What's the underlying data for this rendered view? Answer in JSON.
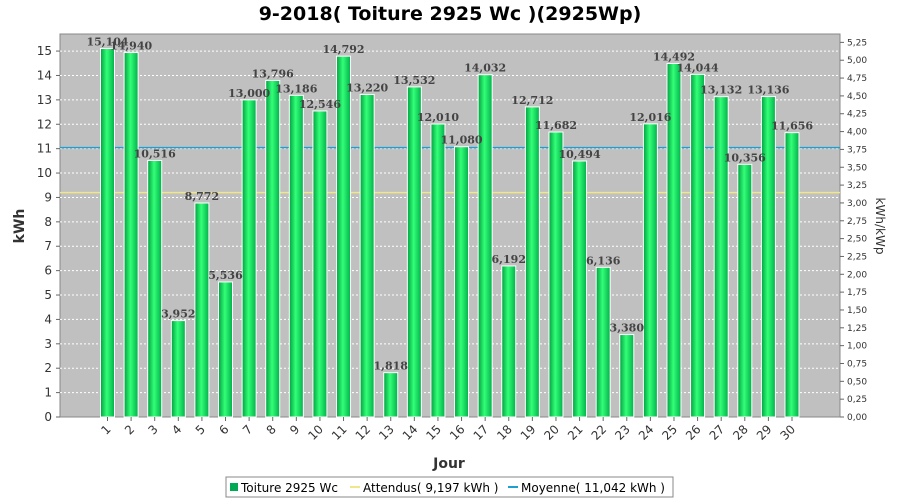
{
  "chart_data": {
    "type": "bar",
    "title": "9-2018( Toiture 2925 Wc )(2925Wp)",
    "xlabel": "Jour",
    "ylabel": "kWh",
    "y2label": "kWh/kWp",
    "ylim": [
      0,
      15.7
    ],
    "y2lim": [
      0,
      5.3675
    ],
    "categories": [
      "1",
      "2",
      "3",
      "4",
      "5",
      "6",
      "7",
      "8",
      "9",
      "10",
      "11",
      "12",
      "13",
      "14",
      "15",
      "16",
      "17",
      "18",
      "19",
      "20",
      "21",
      "22",
      "23",
      "24",
      "25",
      "26",
      "27",
      "28",
      "29",
      "30"
    ],
    "series": [
      {
        "name": "Toiture 2925 Wc",
        "color": "#00dd55",
        "values": [
          15.104,
          14.94,
          10.516,
          3.952,
          8.772,
          5.536,
          13.0,
          13.796,
          13.186,
          12.546,
          14.792,
          13.22,
          1.818,
          13.532,
          12.01,
          11.08,
          14.032,
          6.192,
          12.712,
          11.682,
          10.494,
          6.136,
          3.38,
          12.016,
          14.492,
          14.044,
          13.132,
          10.356,
          13.136,
          11.656
        ]
      }
    ],
    "data_labels": [
      "15,104",
      "14,940",
      "10,516",
      "3,952",
      "8,772",
      "5,536",
      "13,000",
      "13,796",
      "13,186",
      "12,546",
      "14,792",
      "13,220",
      "1,818",
      "13,532",
      "12,010",
      "11,080",
      "14,032",
      "6,192",
      "12,712",
      "11,682",
      "10,494",
      "6,136",
      "3,380",
      "12,016",
      "14,492",
      "14,044",
      "13,132",
      "10,356",
      "13,136",
      "11,656"
    ],
    "reference_lines": [
      {
        "name": "Attendus( 9,197 kWh )",
        "value": 9.197,
        "color": "#f0e68c"
      },
      {
        "name": "Moyenne( 11,042 kWh )",
        "value": 11.042,
        "color": "#1e9fd0"
      }
    ],
    "y_ticks": [
      "0",
      "1",
      "2",
      "3",
      "4",
      "5",
      "6",
      "7",
      "8",
      "9",
      "10",
      "11",
      "12",
      "13",
      "14",
      "15"
    ],
    "y2_ticks": [
      "0,00",
      "0,25",
      "0,50",
      "0,75",
      "1,00",
      "1,25",
      "1,50",
      "1,75",
      "2,00",
      "2,25",
      "2,50",
      "2,75",
      "3,00",
      "3,25",
      "3,50",
      "3,75",
      "4,00",
      "4,25",
      "4,50",
      "4,75",
      "5,00",
      "5,25"
    ],
    "legend": [
      {
        "label": "Toiture 2925 Wc",
        "color": "#00aa55"
      },
      {
        "label": "Attendus( 9,197 kWh )",
        "color": "#f0e68c"
      },
      {
        "label": "Moyenne( 11,042 kWh )",
        "color": "#1e9fd0"
      }
    ],
    "legend_position": "bottom-center",
    "grid": true
  }
}
